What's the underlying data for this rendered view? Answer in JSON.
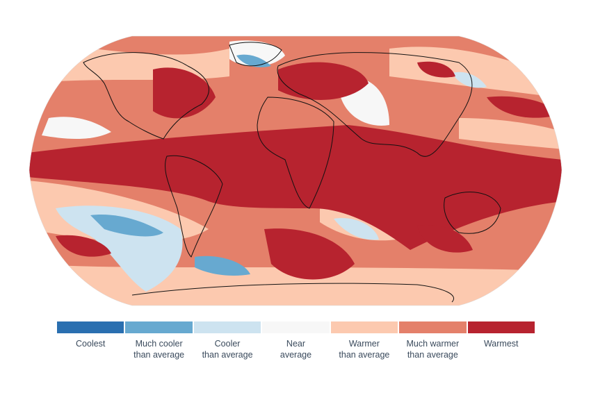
{
  "legend": {
    "items": [
      {
        "line1": "Coolest",
        "line2": "",
        "color": "#2a6fb0"
      },
      {
        "line1": "Much cooler",
        "line2": "than average",
        "color": "#67a9d0"
      },
      {
        "line1": "Cooler",
        "line2": "than average",
        "color": "#cde3f0"
      },
      {
        "line1": "Near",
        "line2": "average",
        "color": "#f7f7f7"
      },
      {
        "line1": "Warmer",
        "line2": "than average",
        "color": "#fcc9af"
      },
      {
        "line1": "Much warmer",
        "line2": "than average",
        "color": "#e4806a"
      },
      {
        "line1": "Warmest",
        "line2": "",
        "color": "#b7232f"
      }
    ]
  }
}
